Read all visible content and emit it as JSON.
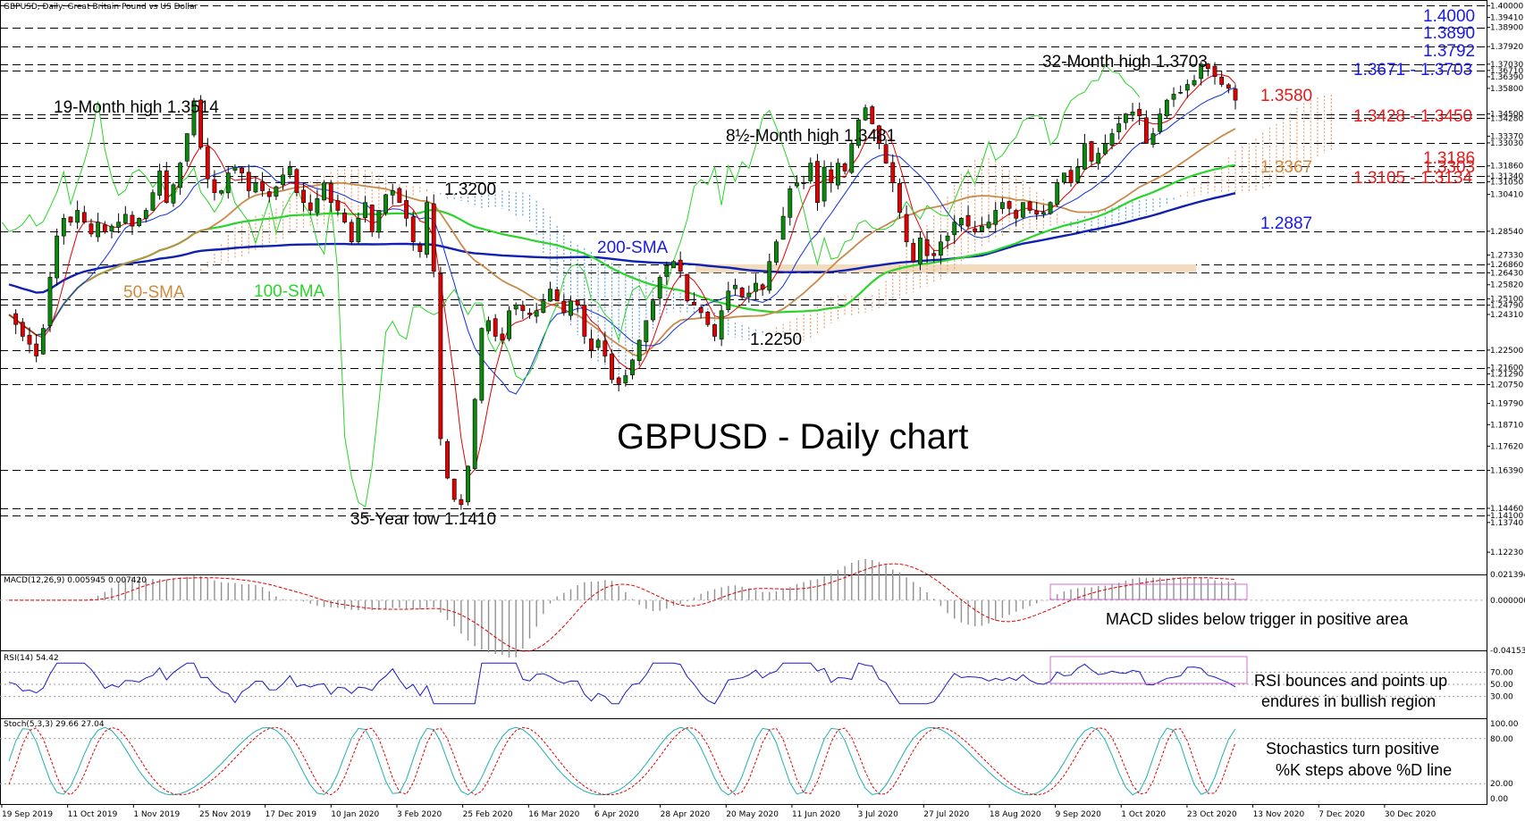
{
  "header": {
    "main_title": "GBPUSD, Daily:  Great Britain Pound vs US Dollar",
    "macd_label": "MACD(12,26,9) 0.005945 0.007420",
    "rsi_label": "RSI(14) 54.42",
    "stoch_label": "Stoch(5,3,3) 29.66 27.04"
  },
  "colors": {
    "bull_candle": "#0a8a0a",
    "bear_candle": "#e00000",
    "sma50": "#c88a4a",
    "sma100": "#2ad42a",
    "sma200": "#1020b0",
    "tenkan": "#e00000",
    "kijun": "#1030e0",
    "chikou": "#2ad42a",
    "cloud_bull": "#e8a070",
    "cloud_bear": "#60a0e0",
    "support_zone": "#f2dcc0",
    "annot_blue": "#1a1ae6",
    "annot_red": "#e61a1a",
    "annot_orange": "#d08a40",
    "macd_hist": "#909090",
    "signal": "#e00000",
    "rsi_line": "#1a1ac8",
    "stoch_k": "#20b0b0",
    "stoch_d": "#e00000",
    "highlight_box": "#d070d0"
  },
  "chart_data": {
    "type": "candlestick",
    "symbol": "GBPUSD",
    "timeframe": "Daily",
    "title": "GBPUSD - Daily chart",
    "ylim": [
      1.111,
      1.4029
    ],
    "x_tick_labels": [
      "19 Sep 2019",
      "11 Oct 2019",
      "1 Nov 2019",
      "25 Nov 2019",
      "17 Dec 2019",
      "10 Jan 2020",
      "3 Feb 2020",
      "25 Feb 2020",
      "16 Mar 2020",
      "6 Apr 2020",
      "28 Apr 2020",
      "20 May 2020",
      "11 Jun 2020",
      "3 Jul 2020",
      "27 Jul 2020",
      "18 Aug 2020",
      "9 Sep 2020",
      "1 Oct 2020",
      "23 Oct 2020",
      "13 Nov 2020",
      "7 Dec 2020",
      "30 Dec 2020"
    ],
    "y_tick_labels": [
      "1.40000",
      "1.39410",
      "1.38900",
      "1.37920",
      "1.37030",
      "1.36710",
      "1.36390",
      "1.35800",
      "1.34500",
      "1.34280",
      "1.33370",
      "1.33030",
      "1.31860",
      "1.31340",
      "1.31050",
      "1.30410",
      "1.28540",
      "1.27330",
      "1.26860",
      "1.26430",
      "1.25820",
      "1.25100",
      "1.24790",
      "1.24310",
      "1.22500",
      "1.21600",
      "1.21290",
      "1.20750",
      "1.19790",
      "1.18710",
      "1.17620",
      "1.16390",
      "1.14460",
      "1.14100",
      "1.13740",
      "1.12230"
    ],
    "horizontal_levels": [
      1.4,
      1.389,
      1.3792,
      1.3703,
      1.3671,
      1.345,
      1.3428,
      1.3303,
      1.3186,
      1.3134,
      1.3105,
      1.2854,
      1.2686,
      1.2643,
      1.251,
      1.2479,
      1.225,
      1.216,
      1.2075,
      1.1639,
      1.1446,
      1.141
    ],
    "support_zone": [
      1.2643,
      1.2686
    ],
    "price_path": [
      1.243,
      1.238,
      1.232,
      1.228,
      1.222,
      1.236,
      1.262,
      1.283,
      1.292,
      1.29,
      1.296,
      1.29,
      1.284,
      1.29,
      1.285,
      1.288,
      1.29,
      1.294,
      1.288,
      1.292,
      1.296,
      1.305,
      1.316,
      1.3,
      1.309,
      1.32,
      1.335,
      1.3514,
      1.328,
      1.312,
      1.305,
      1.306,
      1.315,
      1.318,
      1.315,
      1.306,
      1.31,
      1.306,
      1.303,
      1.308,
      1.314,
      1.318,
      1.305,
      1.3,
      1.296,
      1.302,
      1.31,
      1.3,
      1.296,
      1.29,
      1.28,
      1.292,
      1.3,
      1.285,
      1.296,
      1.304,
      1.306,
      1.3,
      1.292,
      1.28,
      1.275,
      1.3,
      1.265,
      1.18,
      1.16,
      1.1491,
      1.1465,
      1.166,
      1.2,
      1.236,
      1.24,
      1.232,
      1.23,
      1.245,
      1.248,
      1.245,
      1.243,
      1.245,
      1.25,
      1.256,
      1.25,
      1.244,
      1.25,
      1.248,
      1.232,
      1.225,
      1.23,
      1.222,
      1.21,
      1.208,
      1.212,
      1.22,
      1.23,
      1.24,
      1.25,
      1.262,
      1.268,
      1.27,
      1.265,
      1.25,
      1.248,
      1.244,
      1.238,
      1.232,
      1.245,
      1.255,
      1.258,
      1.252,
      1.254,
      1.259,
      1.256,
      1.27,
      1.28,
      1.293,
      1.307,
      1.31,
      1.31,
      1.32,
      1.3,
      1.318,
      1.31,
      1.32,
      1.316,
      1.33,
      1.342,
      1.3481,
      1.34,
      1.33,
      1.32,
      1.31,
      1.295,
      1.28,
      1.27,
      1.282,
      1.273,
      1.273,
      1.28,
      1.283,
      1.29,
      1.292,
      1.288,
      1.285,
      1.288,
      1.29,
      1.296,
      1.3,
      1.297,
      1.292,
      1.3,
      1.296,
      1.294,
      1.295,
      1.3,
      1.31,
      1.315,
      1.31,
      1.318,
      1.33,
      1.321,
      1.325,
      1.33,
      1.335,
      1.34,
      1.345,
      1.346,
      1.344,
      1.33,
      1.335,
      1.345,
      1.352,
      1.355,
      1.356,
      1.36,
      1.362,
      1.3703,
      1.368,
      1.364,
      1.36,
      1.358,
      1.352
    ],
    "annotations": [
      {
        "label": "19-Month high 1.3514",
        "color": "#000000"
      },
      {
        "label": "1.3200",
        "color": "#000000"
      },
      {
        "label": "8½-Month high 1.3481",
        "color": "#000000"
      },
      {
        "label": "32-Month high 1.3703",
        "color": "#000000"
      },
      {
        "label": "1.2250",
        "color": "#000000"
      },
      {
        "label": "35-Year low 1.1410",
        "color": "#000000"
      },
      {
        "label": "200-SMA",
        "color": "#1a1ae6"
      },
      {
        "label": "100-SMA",
        "color": "#2ad42a"
      },
      {
        "label": "50-SMA",
        "color": "#d08a40"
      }
    ],
    "right_labels": [
      {
        "text": "1.4000",
        "color": "#1a1ae6"
      },
      {
        "text": "1.3890",
        "color": "#1a1ae6"
      },
      {
        "text": "1.3792",
        "color": "#1a1ae6"
      },
      {
        "text": "1.3671 - 1.3703",
        "color": "#1a1ae6"
      },
      {
        "text": "1.3580",
        "color": "#e61a1a"
      },
      {
        "text": "1.3428 - 1.3450",
        "color": "#e61a1a"
      },
      {
        "text": "1.3367",
        "color": "#d08a40"
      },
      {
        "text": "1.3303",
        "color": "#e61a1a"
      },
      {
        "text": "1.3186",
        "color": "#e61a1a"
      },
      {
        "text": "1.3105 - 1.3134",
        "color": "#e61a1a"
      },
      {
        "text": "1.2887",
        "color": "#1a1ae6"
      }
    ],
    "macd": {
      "value": 0.005945,
      "signal": 0.00742,
      "ylim": [
        -0.041532,
        0.021394
      ],
      "ticks": [
        "0.021394",
        "0.000000",
        "-0.041532"
      ],
      "note": "MACD slides below trigger in positive area"
    },
    "rsi": {
      "value": 54.42,
      "ticks": [
        "70.00",
        "50.00",
        "30.00"
      ],
      "note_line1": "RSI bounces and points up",
      "note_line2": "endures in bullish region"
    },
    "stoch": {
      "k": 29.66,
      "d": 27.04,
      "ticks": [
        "100.00",
        "80.00",
        "20.00",
        "0.00"
      ],
      "note_line1": "Stochastics turn positive",
      "note_line2": "%K steps above %D line"
    }
  }
}
